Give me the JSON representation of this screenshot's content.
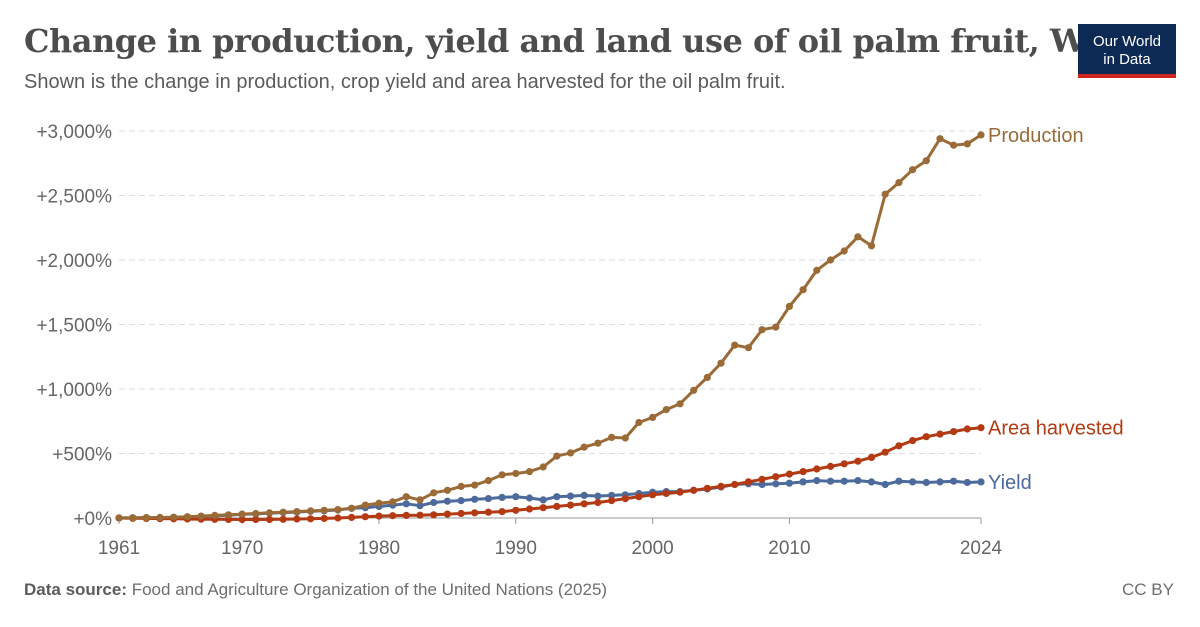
{
  "title": "Change in production, yield and land use of oil palm fruit, World",
  "subtitle": "Shown is the change in production, crop yield and area harvested for the oil palm fruit.",
  "logo": {
    "line1": "Our World",
    "line2": "in Data"
  },
  "footer": {
    "source_label": "Data source:",
    "source_text": "Food and Agriculture Organization of the United Nations (2025)",
    "license": "CC BY"
  },
  "chart_data": {
    "type": "line",
    "xlim": [
      1961,
      2024
    ],
    "ylim": [
      0,
      3000
    ],
    "y_ticks": [
      0,
      500,
      1000,
      1500,
      2000,
      2500,
      3000
    ],
    "y_tick_labels": [
      "+0%",
      "+500%",
      "+1,000%",
      "+1,500%",
      "+2,000%",
      "+2,500%",
      "+3,000%"
    ],
    "x_ticks": [
      1961,
      1970,
      1980,
      1990,
      2000,
      2010,
      2024
    ],
    "x_tick_labels": [
      "1961",
      "1970",
      "1980",
      "1990",
      "2000",
      "2010",
      "2024"
    ],
    "grid": "horizontal dashed",
    "legend": "inline labels at line ends (right)",
    "x": [
      1961,
      1962,
      1963,
      1964,
      1965,
      1966,
      1967,
      1968,
      1969,
      1970,
      1971,
      1972,
      1973,
      1974,
      1975,
      1976,
      1977,
      1978,
      1979,
      1980,
      1981,
      1982,
      1983,
      1984,
      1985,
      1986,
      1987,
      1988,
      1989,
      1990,
      1991,
      1992,
      1993,
      1994,
      1995,
      1996,
      1997,
      1998,
      1999,
      2000,
      2001,
      2002,
      2003,
      2004,
      2005,
      2006,
      2007,
      2008,
      2009,
      2010,
      2011,
      2012,
      2013,
      2014,
      2015,
      2016,
      2017,
      2018,
      2019,
      2020,
      2021,
      2022,
      2023,
      2024
    ],
    "series": [
      {
        "name": "Production",
        "color": "#9a6a37",
        "values": [
          0,
          2,
          3,
          4,
          6,
          10,
          15,
          20,
          25,
          30,
          35,
          40,
          45,
          50,
          55,
          60,
          65,
          75,
          100,
          115,
          125,
          165,
          140,
          195,
          215,
          245,
          255,
          290,
          335,
          345,
          360,
          395,
          480,
          505,
          550,
          580,
          625,
          620,
          740,
          780,
          840,
          885,
          990,
          1090,
          1200,
          1340,
          1320,
          1460,
          1480,
          1640,
          1770,
          1920,
          2000,
          2070,
          2180,
          2110,
          2510,
          2600,
          2700,
          2770,
          2940,
          2890,
          2900,
          2970
        ]
      },
      {
        "name": "Area harvested",
        "color": "#b33a12",
        "values": [
          0,
          -2,
          -3,
          -5,
          -6,
          -8,
          -9,
          -10,
          -11,
          -12,
          -12,
          -11,
          -10,
          -8,
          -6,
          -3,
          0,
          5,
          10,
          15,
          18,
          20,
          22,
          25,
          30,
          35,
          40,
          45,
          50,
          60,
          70,
          80,
          90,
          100,
          110,
          120,
          135,
          150,
          165,
          180,
          190,
          200,
          215,
          230,
          245,
          260,
          280,
          300,
          320,
          340,
          360,
          380,
          400,
          420,
          440,
          470,
          510,
          560,
          600,
          630,
          650,
          670,
          690,
          700
        ]
      },
      {
        "name": "Yield",
        "color": "#4c6a9c",
        "values": [
          0,
          1,
          2,
          3,
          5,
          8,
          12,
          16,
          22,
          28,
          32,
          38,
          42,
          46,
          52,
          56,
          62,
          75,
          80,
          90,
          100,
          110,
          95,
          120,
          130,
          135,
          145,
          150,
          160,
          165,
          155,
          140,
          165,
          170,
          175,
          170,
          175,
          180,
          190,
          200,
          205,
          205,
          215,
          225,
          240,
          260,
          265,
          260,
          265,
          270,
          280,
          290,
          285,
          285,
          290,
          280,
          260,
          285,
          280,
          275,
          280,
          285,
          275,
          280
        ]
      }
    ]
  }
}
